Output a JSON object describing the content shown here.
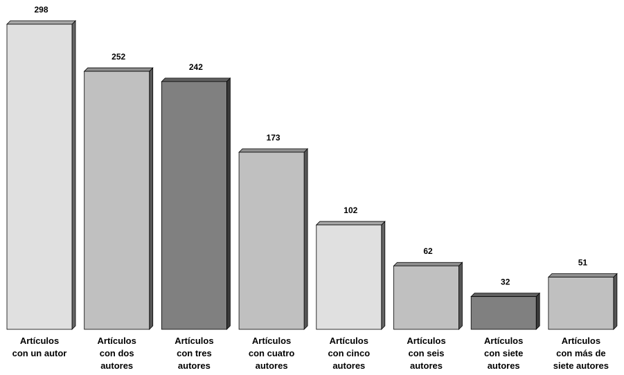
{
  "chart_data": {
    "type": "bar",
    "title": "",
    "xlabel": "",
    "ylabel": "",
    "ylim": [
      0,
      298
    ],
    "grid": false,
    "legend": "none",
    "categories": [
      [
        "Artículos",
        "con un autor"
      ],
      [
        "Artículos",
        "con dos",
        "autores"
      ],
      [
        "Artículos",
        "con tres",
        "autores"
      ],
      [
        "Artículos",
        "con cuatro",
        "autores"
      ],
      [
        "Artículos",
        "con cinco",
        "autores"
      ],
      [
        "Artículos",
        "con seis",
        "autores"
      ],
      [
        "Artículos",
        "con siete",
        "autores"
      ],
      [
        "Artículos",
        "con más de",
        "siete autores"
      ]
    ],
    "values": [
      298,
      252,
      242,
      173,
      102,
      62,
      32,
      51
    ],
    "value_labels": [
      "298",
      "252",
      "242",
      "173",
      "102",
      "62",
      "32",
      "51"
    ],
    "bar_colors": [
      "#e0e0e0",
      "#c0c0c0",
      "#808080",
      "#c0c0c0",
      "#e0e0e0",
      "#c0c0c0",
      "#808080",
      "#c0c0c0"
    ]
  }
}
